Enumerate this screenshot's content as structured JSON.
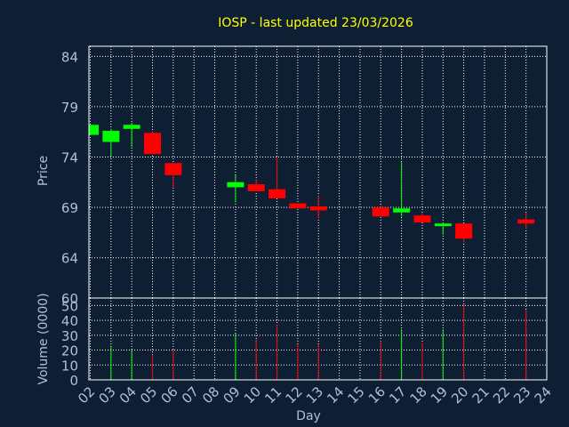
{
  "colors": {
    "background": "#0f1f33",
    "title": "#ffff00",
    "axis_text": "#a9c1df",
    "grid": "#ffffff",
    "up": "#00ff00",
    "down": "#ff0000"
  },
  "chart_data": {
    "type": "candlestick",
    "title": "IOSP - last updated 23/03/2026",
    "xlabel": "Day",
    "ylabel_price": "Price",
    "ylabel_volume": "Volume (0000)",
    "price_ylim": [
      60,
      85
    ],
    "price_ticks": [
      60,
      64,
      69,
      74,
      79,
      84
    ],
    "volume_ylim": [
      0,
      55
    ],
    "volume_ticks": [
      0,
      10,
      20,
      30,
      40,
      50
    ],
    "x_ticks": [
      "02",
      "03",
      "04",
      "05",
      "06",
      "07",
      "08",
      "09",
      "10",
      "11",
      "12",
      "13",
      "14",
      "15",
      "16",
      "17",
      "18",
      "19",
      "20",
      "21",
      "22",
      "23",
      "24"
    ],
    "grid": true,
    "candles": [
      {
        "day": "02",
        "open": 76.2,
        "close": 77.2,
        "high": 77.2,
        "low": 76.2,
        "volume": 0
      },
      {
        "day": "03",
        "open": 75.5,
        "close": 76.6,
        "high": 76.8,
        "low": 74.1,
        "volume": 23
      },
      {
        "day": "04",
        "open": 76.8,
        "close": 77.2,
        "high": 77.4,
        "low": 75.0,
        "volume": 20
      },
      {
        "day": "05",
        "open": 76.4,
        "close": 74.3,
        "high": 76.6,
        "low": 74.3,
        "volume": 17
      },
      {
        "day": "06",
        "open": 73.4,
        "close": 72.2,
        "high": 73.4,
        "low": 71.0,
        "volume": 20
      },
      {
        "day": "09",
        "open": 71.0,
        "close": 71.5,
        "high": 72.2,
        "low": 69.5,
        "volume": 31
      },
      {
        "day": "10",
        "open": 71.3,
        "close": 70.6,
        "high": 71.8,
        "low": 70.6,
        "volume": 27
      },
      {
        "day": "11",
        "open": 70.8,
        "close": 69.9,
        "high": 74.0,
        "low": 69.9,
        "volume": 37
      },
      {
        "day": "12",
        "open": 69.4,
        "close": 68.9,
        "high": 69.4,
        "low": 68.9,
        "volume": 24
      },
      {
        "day": "13",
        "open": 69.1,
        "close": 68.7,
        "high": 70.2,
        "low": 67.9,
        "volume": 24
      },
      {
        "day": "16",
        "open": 69.0,
        "close": 68.1,
        "high": 69.2,
        "low": 68.1,
        "volume": 26
      },
      {
        "day": "17",
        "open": 68.5,
        "close": 68.9,
        "high": 73.5,
        "low": 68.1,
        "volume": 34
      },
      {
        "day": "18",
        "open": 68.2,
        "close": 67.5,
        "high": 68.4,
        "low": 67.5,
        "volume": 25
      },
      {
        "day": "19",
        "open": 67.2,
        "close": 67.4,
        "high": 67.5,
        "low": 66.3,
        "volume": 34
      },
      {
        "day": "20",
        "open": 67.4,
        "close": 65.9,
        "high": 67.4,
        "low": 65.5,
        "volume": 51
      },
      {
        "day": "23",
        "open": 67.8,
        "close": 67.4,
        "high": 68.5,
        "low": 66.9,
        "volume": 47
      }
    ]
  }
}
